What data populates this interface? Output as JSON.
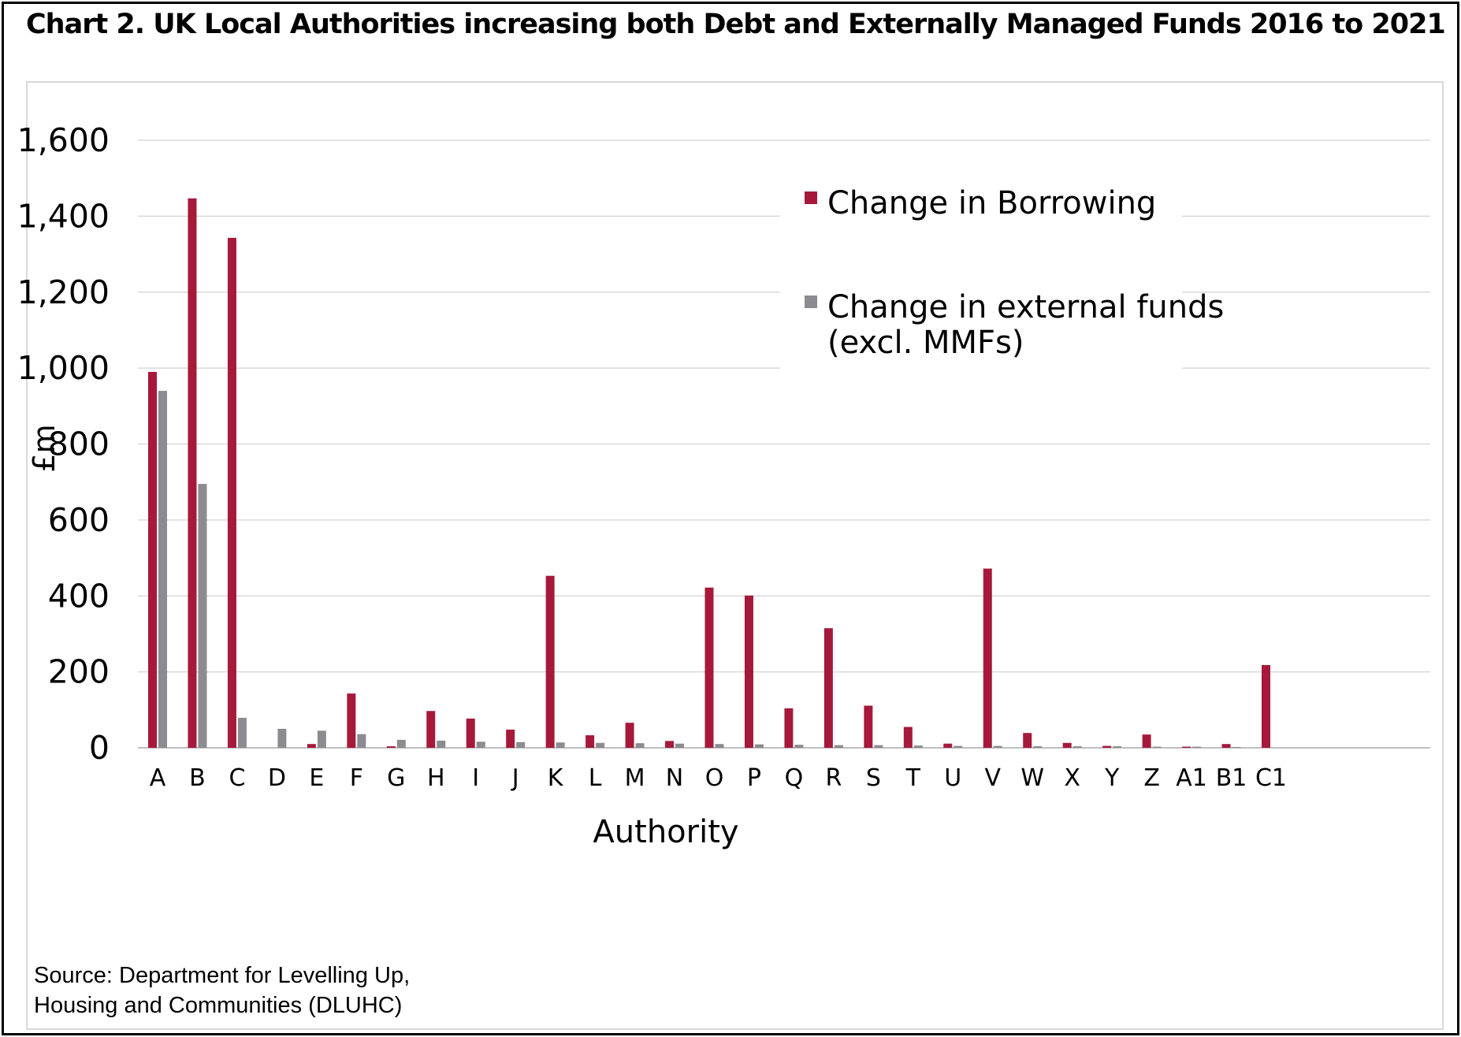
{
  "title": "Chart 2. UK Local Authorities increasing both Debt and Externally Managed Funds 2016 to 2021",
  "source_line1": "Source: Department for Levelling Up,",
  "source_line2": "Housing and Communities (DLUHC)",
  "colors": {
    "borrowing": "#a6193a",
    "external": "#8c8c90",
    "grid": "#d9d9d9"
  },
  "chart_data": {
    "type": "bar",
    "title": "Chart 2. UK Local Authorities increasing both Debt and Externally Managed Funds 2016 to 2021",
    "xlabel": "Authority",
    "ylabel": "£m",
    "ylim": [
      0,
      1600
    ],
    "yticks": [
      0,
      200,
      400,
      600,
      800,
      1000,
      1200,
      1400,
      1600
    ],
    "ytick_labels": [
      "0",
      "200",
      "400",
      "600",
      "800",
      "1,000",
      "1,200",
      "1,400",
      "1,600"
    ],
    "grid": true,
    "legend_position": "top-right",
    "categories": [
      "A",
      "B",
      "C",
      "D",
      "E",
      "F",
      "G",
      "H",
      "I",
      "J",
      "K",
      "L",
      "M",
      "N",
      "O",
      "P",
      "Q",
      "R",
      "S",
      "T",
      "U",
      "V",
      "W",
      "X",
      "Y",
      "Z",
      "A1",
      "B1",
      "C1"
    ],
    "series": [
      {
        "name": "Change in Borrowing",
        "legend_lines": [
          "Change in Borrowing"
        ],
        "values": [
          990,
          1447,
          1343,
          0,
          10,
          143,
          4,
          97,
          77,
          48,
          453,
          33,
          66,
          18,
          422,
          401,
          104,
          315,
          111,
          55,
          11,
          472,
          39,
          13,
          5,
          35,
          3,
          10,
          218
        ]
      },
      {
        "name": "Change in external funds (excl. MMFs)",
        "legend_lines": [
          "Change in external funds",
          "(excl. MMFs)"
        ],
        "values": [
          940,
          695,
          79,
          50,
          45,
          36,
          21,
          19,
          16,
          15,
          14,
          13,
          12,
          11,
          10,
          9,
          8,
          7,
          7,
          6,
          5,
          5,
          4,
          4,
          4,
          3,
          3,
          2,
          0
        ]
      }
    ]
  }
}
